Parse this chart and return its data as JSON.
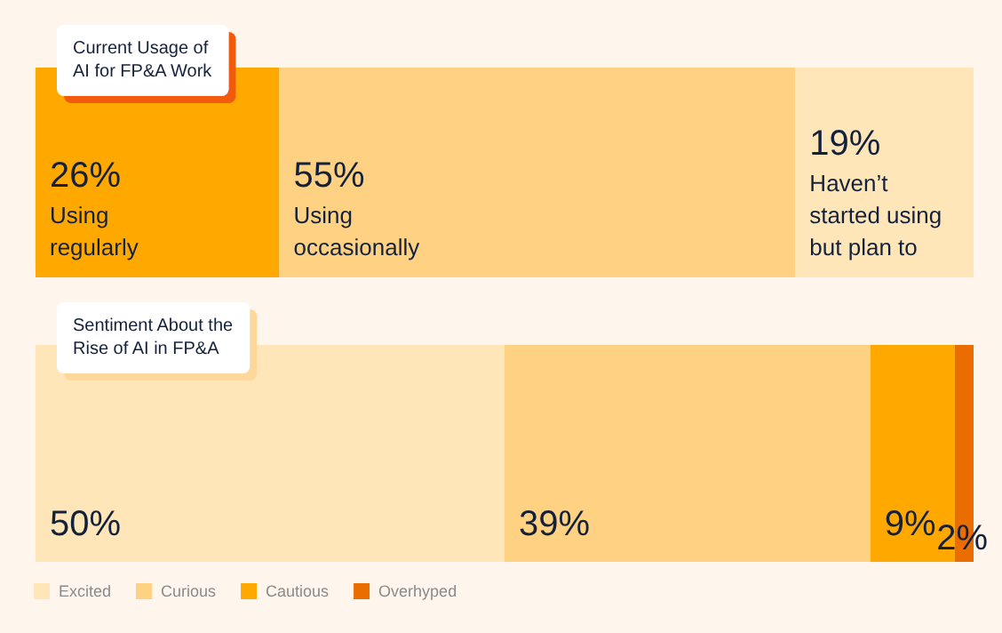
{
  "chart_data": [
    {
      "type": "bar",
      "title": "Current Usage of\nAI for FP&A Work",
      "orientation": "horizontal",
      "stacked": true,
      "categories": [
        null
      ],
      "legend": false,
      "series": [
        {
          "name": "Using regularly",
          "color": "#ffa800",
          "values": [
            26
          ],
          "value_labels": [
            "26%"
          ]
        },
        {
          "name": "Using occasionally",
          "color": "#fed282",
          "values": [
            55
          ],
          "value_labels": [
            "55%"
          ]
        },
        {
          "name": "Haven’t started using but plan to",
          "color": "#fee6b8",
          "values": [
            19
          ],
          "value_labels": [
            "19%"
          ]
        }
      ]
    },
    {
      "type": "bar",
      "title": "Sentiment About the\nRise of AI in FP&A",
      "orientation": "horizontal",
      "stacked": true,
      "categories": [
        null
      ],
      "legend": "bottom left",
      "series": [
        {
          "name": "Excited",
          "color": "#fee6b8",
          "values": [
            50
          ],
          "value_labels": [
            "50%"
          ]
        },
        {
          "name": "Curious",
          "color": "#fed282",
          "values": [
            39
          ],
          "value_labels": [
            "39%"
          ]
        },
        {
          "name": "Cautious",
          "color": "#ffa800",
          "values": [
            9
          ],
          "value_labels": [
            "9%"
          ]
        },
        {
          "name": "Overhyped",
          "color": "#e96d00",
          "values": [
            2
          ],
          "value_labels": [
            "2%"
          ]
        }
      ]
    }
  ]
}
